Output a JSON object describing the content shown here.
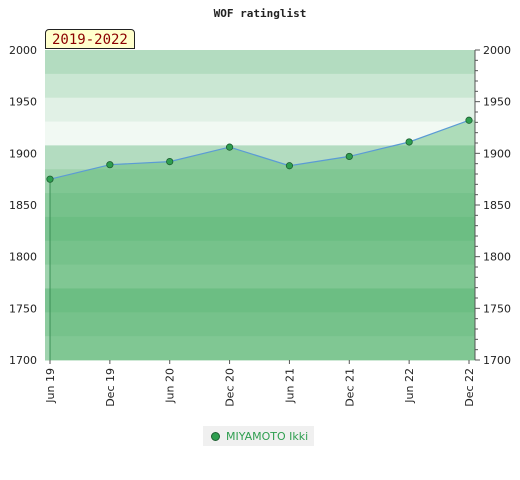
{
  "chart_data": {
    "type": "line",
    "title": "WOF ratinglist",
    "period_label": "2019-2022",
    "x": [
      "Jun 19",
      "Dec 19",
      "Jun 20",
      "Dec 20",
      "Jun 21",
      "Dec 21",
      "Jun 22",
      "Dec 22"
    ],
    "series": [
      {
        "name": "MIYAMOTO Ikki",
        "values": [
          1875,
          1889,
          1892,
          1906,
          1888,
          1897,
          1911,
          1932
        ]
      }
    ],
    "ylim": [
      1700,
      2000
    ],
    "yticks": [
      2000,
      1950,
      1900,
      1850,
      1800,
      1750,
      1700
    ],
    "grid": false,
    "legend": "bottom-center",
    "colors": {
      "line": "#5b9bd5",
      "marker_fill": "#2e9e4f",
      "marker_stroke": "#1d5e31",
      "area_fill": "#5cb873",
      "band_colors": [
        "#b3dcc0",
        "#cae7d3",
        "#e1f1e6",
        "#f1f9f3",
        "#b3dcc0",
        "#9fd3ae",
        "#8ccb9e",
        "#7bc391",
        "#8ccb9e",
        "#9fd3ae",
        "#7bc391",
        "#8ccb9e",
        "#9fd3ae"
      ]
    }
  }
}
